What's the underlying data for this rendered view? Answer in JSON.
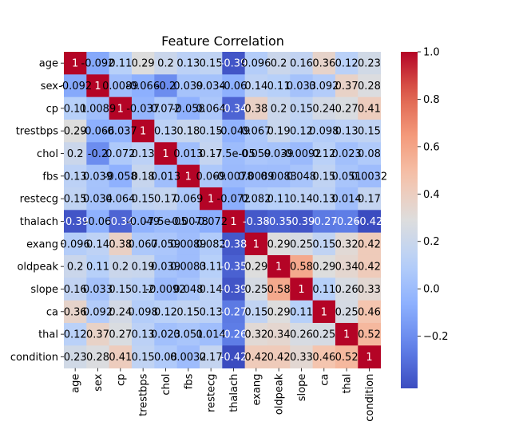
{
  "chart_data": {
    "type": "heatmap",
    "title": "Feature Correlation",
    "xlabel": "",
    "ylabel": "",
    "variables": [
      "age",
      "sex",
      "cp",
      "trestbps",
      "chol",
      "fbs",
      "restecg",
      "thalach",
      "exang",
      "oldpeak",
      "slope",
      "ca",
      "thal",
      "condition"
    ],
    "x_tick_labels": [
      "age",
      "sex",
      "cp",
      "trestbps",
      "chol",
      "fbs",
      "restecg",
      "thalach",
      "exang",
      "oldpeak",
      "slope",
      "ca",
      "thal",
      "condition"
    ],
    "y_tick_labels": [
      "age",
      "sex",
      "cp",
      "trestbps",
      "chol",
      "fbs",
      "restecg",
      "thalach",
      "exang",
      "oldpeak",
      "slope",
      "ca",
      "thal",
      "condition"
    ],
    "values": [
      [
        1,
        -0.092,
        0.11,
        0.29,
        0.2,
        0.13,
        0.15,
        -0.39,
        0.096,
        0.2,
        0.16,
        0.36,
        0.12,
        0.23
      ],
      [
        -0.092,
        1,
        0.0089,
        -0.066,
        -0.2,
        0.039,
        0.034,
        -0.06,
        0.14,
        0.11,
        0.033,
        0.092,
        0.37,
        0.28
      ],
      [
        0.11,
        0.0089,
        1,
        -0.037,
        0.072,
        -0.058,
        0.064,
        -0.34,
        0.38,
        0.2,
        0.15,
        0.24,
        0.27,
        0.41
      ],
      [
        0.29,
        -0.066,
        -0.037,
        1,
        0.13,
        0.18,
        0.15,
        -0.049,
        0.067,
        0.19,
        0.12,
        0.098,
        0.13,
        0.15
      ],
      [
        0.2,
        -0.2,
        0.072,
        0.13,
        1,
        0.013,
        0.17,
        -7.5e-05,
        0.059,
        0.039,
        -0.0092,
        0.12,
        0.023,
        0.08
      ],
      [
        0.13,
        0.039,
        -0.058,
        0.18,
        0.013,
        1,
        0.069,
        -0.0078,
        0.0089,
        0.0083,
        0.048,
        0.15,
        0.051,
        0.0032
      ],
      [
        0.15,
        0.034,
        0.064,
        0.15,
        0.17,
        0.069,
        1,
        -0.072,
        0.082,
        0.11,
        0.14,
        0.13,
        0.014,
        0.17
      ],
      [
        -0.39,
        -0.06,
        -0.34,
        -0.049,
        -7.5e-05,
        -0.0078,
        -0.072,
        1,
        -0.38,
        -0.35,
        -0.39,
        -0.27,
        -0.26,
        -0.42
      ],
      [
        0.096,
        0.14,
        0.38,
        0.067,
        0.059,
        0.0089,
        0.082,
        -0.38,
        1,
        0.29,
        0.25,
        0.15,
        0.32,
        0.42
      ],
      [
        0.2,
        0.11,
        0.2,
        0.19,
        0.039,
        0.0083,
        0.11,
        -0.35,
        0.29,
        1,
        0.58,
        0.29,
        0.34,
        0.42
      ],
      [
        0.16,
        0.033,
        0.15,
        0.12,
        -0.0092,
        0.048,
        0.14,
        -0.39,
        0.25,
        0.58,
        1,
        0.11,
        0.26,
        0.33
      ],
      [
        0.36,
        0.092,
        0.24,
        0.098,
        0.12,
        0.15,
        0.13,
        -0.27,
        0.15,
        0.29,
        0.11,
        1,
        0.25,
        0.46
      ],
      [
        0.12,
        0.37,
        0.27,
        0.13,
        0.023,
        0.051,
        0.014,
        -0.26,
        0.32,
        0.34,
        0.26,
        0.25,
        1,
        0.52
      ],
      [
        0.23,
        0.28,
        0.41,
        0.15,
        0.08,
        0.0032,
        0.17,
        -0.42,
        0.42,
        0.42,
        0.33,
        0.46,
        0.52,
        1
      ]
    ],
    "cell_labels": [
      [
        "1",
        "-0.092",
        "0.11",
        "0.29",
        "0.2",
        "0.13",
        "0.15",
        "-0.39",
        "0.096",
        "0.2",
        "0.16",
        "0.36",
        "0.12",
        "0.23"
      ],
      [
        "-0.092",
        "1",
        "0.0089",
        "-0.066",
        "-0.2",
        "0.039",
        "0.034",
        "-0.06",
        "0.14",
        "0.11",
        "0.033",
        "0.092",
        "0.37",
        "0.28"
      ],
      [
        "0.11",
        "0.0089",
        "1",
        "-0.037",
        "0.072",
        "-0.058",
        "0.064",
        "-0.34",
        "0.38",
        "0.2",
        "0.15",
        "0.24",
        "0.27",
        "0.41"
      ],
      [
        "0.29",
        "-0.066",
        "-0.037",
        "1",
        "0.13",
        "0.18",
        "0.15",
        "-0.049",
        "0.067",
        "0.19",
        "0.12",
        "0.098",
        "0.13",
        "0.15"
      ],
      [
        "0.2",
        "-0.2",
        "0.072",
        "0.13",
        "1",
        "0.013",
        "0.17",
        "-7.5e-05",
        "0.059",
        "0.039",
        "-0.0092",
        "0.12",
        "0.023",
        "0.08"
      ],
      [
        "0.13",
        "0.039",
        "-0.058",
        "0.18",
        "0.013",
        "1",
        "0.069",
        "-0.0078",
        "0.0089",
        "0.0083",
        "0.048",
        "0.15",
        "0.051",
        "0.0032"
      ],
      [
        "0.15",
        "0.034",
        "0.064",
        "0.15",
        "0.17",
        "0.069",
        "1",
        "-0.072",
        "0.082",
        "0.11",
        "0.14",
        "0.13",
        "0.014",
        "0.17"
      ],
      [
        "-0.39",
        "-0.06",
        "-0.34",
        "-0.049",
        "-7.5e-05",
        "-0.0078",
        "-0.072",
        "1",
        "-0.38",
        "-0.35",
        "-0.39",
        "-0.27",
        "-0.26",
        "-0.42"
      ],
      [
        "0.096",
        "0.14",
        "0.38",
        "0.067",
        "0.059",
        "0.0089",
        "0.082",
        "-0.38",
        "1",
        "0.29",
        "0.25",
        "0.15",
        "0.32",
        "0.42"
      ],
      [
        "0.2",
        "0.11",
        "0.2",
        "0.19",
        "0.039",
        "0.0083",
        "0.11",
        "-0.35",
        "0.29",
        "1",
        "0.58",
        "0.29",
        "0.34",
        "0.42"
      ],
      [
        "0.16",
        "0.033",
        "0.15",
        "0.12",
        "-0.0092",
        "0.048",
        "0.14",
        "-0.39",
        "0.25",
        "0.58",
        "1",
        "0.11",
        "0.26",
        "0.33"
      ],
      [
        "0.36",
        "0.092",
        "0.24",
        "0.098",
        "0.12",
        "0.15",
        "0.13",
        "-0.27",
        "0.15",
        "0.29",
        "0.11",
        "1",
        "0.25",
        "0.46"
      ],
      [
        "0.12",
        "0.37",
        "0.27",
        "0.13",
        "0.023",
        "0.051",
        "0.014",
        "-0.26",
        "0.32",
        "0.34",
        "0.26",
        "0.25",
        "1",
        "0.52"
      ],
      [
        "0.23",
        "0.28",
        "0.41",
        "0.15",
        "0.08",
        "0.0032",
        "0.17",
        "-0.42",
        "0.42",
        "0.42",
        "0.33",
        "0.46",
        "0.52",
        "1"
      ]
    ],
    "colormap": "coolwarm",
    "colorbar": {
      "vmin": -0.42,
      "vmax": 1.0,
      "ticks": [
        -0.2,
        0.0,
        0.2,
        0.4,
        0.6,
        0.8,
        1.0
      ],
      "tick_labels": [
        "−0.2",
        "0.0",
        "0.2",
        "0.4",
        "0.6",
        "0.8",
        "1.0"
      ],
      "placement": "right"
    },
    "legend": "none",
    "grid": false
  }
}
